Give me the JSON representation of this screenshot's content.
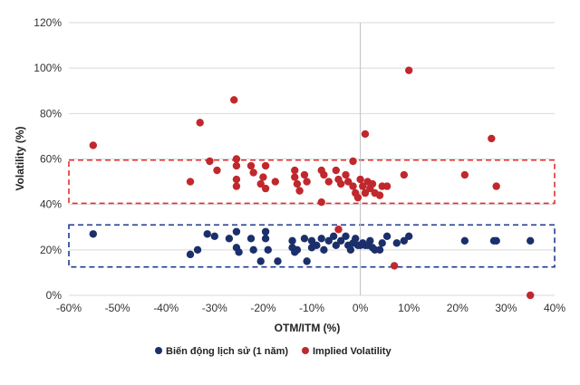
{
  "colors": {
    "hist": "#1b2f6b",
    "implied": "#c0282d",
    "hist_box": "#1f3a8f",
    "implied_box": "#e0302f",
    "grid": "#d9d9d9",
    "axis": "#bfbfbf"
  },
  "chart_data": {
    "type": "scatter",
    "title": "",
    "xlabel": "OTM/ITM (%)",
    "ylabel": "Volatility (%)",
    "xlim": [
      -60,
      40
    ],
    "ylim": [
      0,
      120
    ],
    "x_ticks": [
      -60,
      -50,
      -40,
      -30,
      -20,
      -10,
      0,
      10,
      20,
      30,
      40
    ],
    "x_tick_labels": [
      "-60%",
      "-50%",
      "-40%",
      "-30%",
      "-20%",
      "-10%",
      "0%",
      "10%",
      "20%",
      "30%",
      "40%"
    ],
    "y_ticks": [
      0,
      20,
      40,
      60,
      80,
      100,
      120
    ],
    "y_tick_labels": [
      "0%",
      "20%",
      "40%",
      "60%",
      "80%",
      "100%",
      "120%"
    ],
    "grid": "horizontal",
    "legend_position": "bottom",
    "bands": [
      {
        "name": "historical-band",
        "x_range": [
          -60,
          40
        ],
        "y_range": [
          12.5,
          31
        ]
      },
      {
        "name": "implied-band",
        "x_range": [
          -60,
          40
        ],
        "y_range": [
          40.5,
          59.5
        ]
      }
    ],
    "series": [
      {
        "name": "Biến động lịch sử (1 năm)",
        "color_key": "hist",
        "points": [
          [
            -55,
            27
          ],
          [
            -35,
            18
          ],
          [
            -33.5,
            20
          ],
          [
            -31.5,
            27
          ],
          [
            -30,
            26
          ],
          [
            -27,
            25
          ],
          [
            -25.5,
            28
          ],
          [
            -25.5,
            21
          ],
          [
            -25,
            19
          ],
          [
            -22.5,
            25
          ],
          [
            -22,
            20
          ],
          [
            -20.5,
            15
          ],
          [
            -19.5,
            28
          ],
          [
            -19.5,
            25
          ],
          [
            -19,
            20
          ],
          [
            -17,
            15
          ],
          [
            -14,
            24
          ],
          [
            -14,
            21
          ],
          [
            -13.5,
            19
          ],
          [
            -13,
            20
          ],
          [
            -11.5,
            25
          ],
          [
            -11,
            15
          ],
          [
            -10,
            24
          ],
          [
            -10,
            21
          ],
          [
            -9,
            22
          ],
          [
            -8,
            25
          ],
          [
            -7.5,
            20
          ],
          [
            -6.5,
            24
          ],
          [
            -5.5,
            26
          ],
          [
            -5,
            22
          ],
          [
            -4,
            24
          ],
          [
            -3,
            26
          ],
          [
            -2.5,
            22
          ],
          [
            -2,
            20
          ],
          [
            -1.5,
            23
          ],
          [
            -1,
            25
          ],
          [
            -0.5,
            22
          ],
          [
            0,
            22
          ],
          [
            0.5,
            23
          ],
          [
            1,
            22
          ],
          [
            1.5,
            22
          ],
          [
            2,
            24
          ],
          [
            2.5,
            21
          ],
          [
            3,
            20
          ],
          [
            4,
            20
          ],
          [
            4.5,
            23
          ],
          [
            5.5,
            26
          ],
          [
            7.5,
            23
          ],
          [
            9,
            24
          ],
          [
            10,
            26
          ],
          [
            21.5,
            24
          ],
          [
            27.5,
            24
          ],
          [
            28,
            24
          ],
          [
            35,
            24
          ]
        ]
      },
      {
        "name": "Implied Volatility",
        "color_key": "implied",
        "points": [
          [
            -55,
            66
          ],
          [
            -35,
            50
          ],
          [
            -33,
            76
          ],
          [
            -31,
            59
          ],
          [
            -29.5,
            55
          ],
          [
            -26,
            86
          ],
          [
            -25.5,
            60
          ],
          [
            -25.5,
            57
          ],
          [
            -25.5,
            51
          ],
          [
            -25.5,
            48
          ],
          [
            -22.5,
            57
          ],
          [
            -22,
            54
          ],
          [
            -20.5,
            49
          ],
          [
            -20,
            52
          ],
          [
            -19.5,
            57
          ],
          [
            -19.5,
            47
          ],
          [
            -17.5,
            50
          ],
          [
            -13.5,
            55
          ],
          [
            -13.5,
            52
          ],
          [
            -13,
            49
          ],
          [
            -12.5,
            46
          ],
          [
            -11.5,
            53
          ],
          [
            -11,
            50
          ],
          [
            -8,
            55
          ],
          [
            -8,
            41
          ],
          [
            -7.5,
            53
          ],
          [
            -6.5,
            50
          ],
          [
            -5,
            55
          ],
          [
            -4.5,
            51
          ],
          [
            -4,
            49
          ],
          [
            -3,
            53
          ],
          [
            -2.5,
            50
          ],
          [
            -1.5,
            59
          ],
          [
            -1.5,
            48
          ],
          [
            -1,
            45
          ],
          [
            -0.5,
            43
          ],
          [
            0,
            51
          ],
          [
            0.5,
            48
          ],
          [
            1,
            71
          ],
          [
            1,
            45
          ],
          [
            1.5,
            50
          ],
          [
            2,
            47
          ],
          [
            2.5,
            49
          ],
          [
            3,
            45
          ],
          [
            4,
            44
          ],
          [
            4.5,
            48
          ],
          [
            5.5,
            48
          ],
          [
            9,
            53
          ],
          [
            10,
            99
          ],
          [
            21.5,
            53
          ],
          [
            27,
            69
          ],
          [
            28,
            48
          ],
          [
            -4.5,
            29
          ],
          [
            7,
            13
          ],
          [
            35,
            0
          ]
        ]
      }
    ]
  }
}
